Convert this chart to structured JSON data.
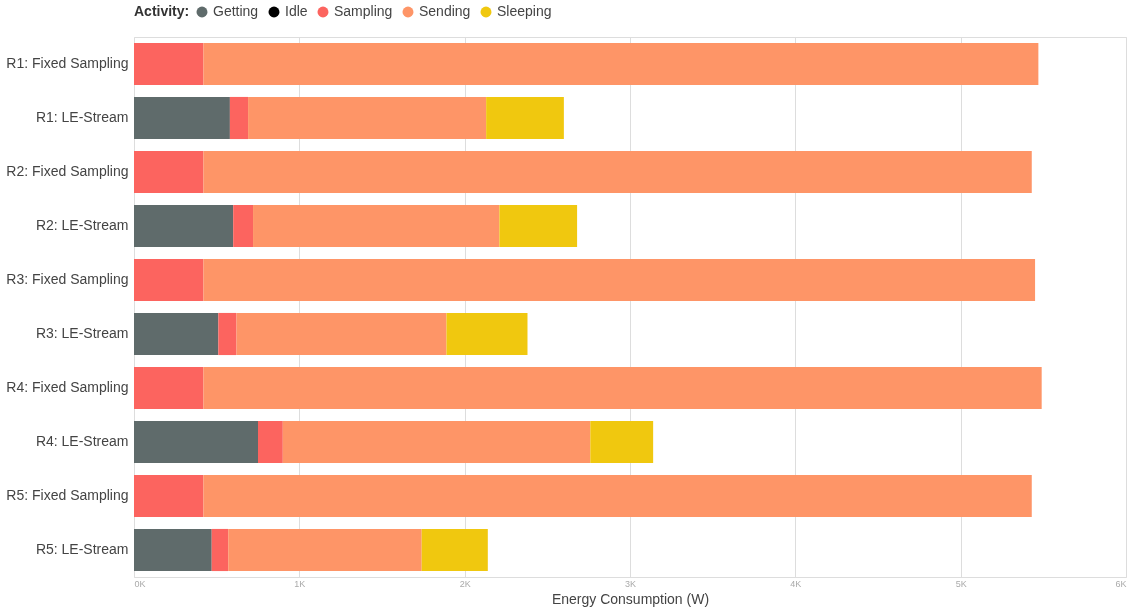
{
  "chart_data": {
    "type": "bar",
    "orientation": "horizontal",
    "stacked": true,
    "categories": [
      "R1: Fixed Sampling",
      "R1: LE-Stream",
      "R2: Fixed Sampling",
      "R2: LE-Stream",
      "R3: Fixed Sampling",
      "R3: LE-Stream",
      "R4: Fixed Sampling",
      "R4: LE-Stream",
      "R5: Fixed Sampling",
      "R5: LE-Stream"
    ],
    "series": [
      {
        "name": "Getting",
        "color": "#5f6b6b",
        "values": [
          null,
          580,
          null,
          600,
          null,
          510,
          null,
          750,
          null,
          470
        ]
      },
      {
        "name": "Idle",
        "color": "#000000",
        "values": [
          null,
          null,
          null,
          null,
          null,
          null,
          null,
          null,
          null,
          null
        ]
      },
      {
        "name": "Sampling",
        "color": "#fc645f",
        "values": [
          420,
          110,
          420,
          120,
          420,
          110,
          420,
          150,
          420,
          100
        ]
      },
      {
        "name": "Sending",
        "color": "#fe9567",
        "values": [
          5050,
          1440,
          5010,
          1490,
          5030,
          1270,
          5070,
          1860,
          5010,
          1170
        ]
      },
      {
        "name": "Sleeping",
        "color": "#f0c80f",
        "values": [
          null,
          470,
          null,
          470,
          null,
          490,
          null,
          380,
          null,
          400
        ]
      }
    ],
    "xlabel": "Energy Consumption (W)",
    "legend_title": "Activity:",
    "legend": "top",
    "xlim": [
      0,
      6000
    ],
    "xticks": [
      {
        "value": 0,
        "label": "0K"
      },
      {
        "value": 1000,
        "label": "1K"
      },
      {
        "value": 2000,
        "label": "2K"
      },
      {
        "value": 3000,
        "label": "3K"
      },
      {
        "value": 4000,
        "label": "4K"
      },
      {
        "value": 5000,
        "label": "5K"
      },
      {
        "value": 6000,
        "label": "6K"
      }
    ],
    "grid": "x"
  }
}
